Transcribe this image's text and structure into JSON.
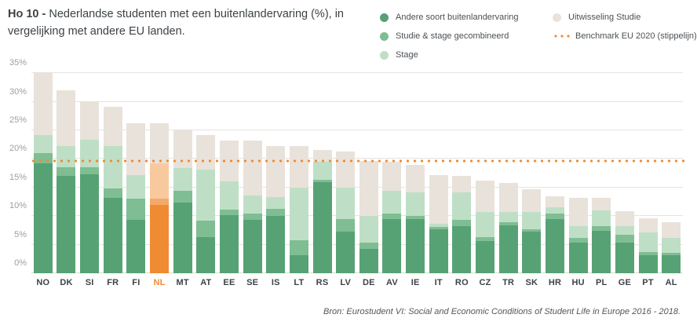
{
  "title": {
    "bold": "Ho 10 - ",
    "rest": "Nederlandse studenten met een buitenlandervaring (%), in vergelijking met andere EU landen."
  },
  "source": "Bron: Eurostudent VI: Social and Economic Conditions of Student Life in Europe 2016 - 2018.",
  "legend": {
    "columns": [
      [
        {
          "label": "Andere soort buitenlandervaring",
          "swatch": "dot",
          "color": "#57a274"
        },
        {
          "label": "Studie & stage gecombineerd",
          "swatch": "dot",
          "color": "#7fbd92"
        },
        {
          "label": "Stage",
          "swatch": "dot",
          "color": "#bedfc6"
        }
      ],
      [
        {
          "label": "Uitwisseling Studie",
          "swatch": "dot",
          "color": "#e9e2da"
        },
        {
          "label": "Benchmark EU 2020 (stippelijn)",
          "swatch": "dotted-line",
          "color": "#f08c33"
        }
      ]
    ]
  },
  "chart_data": {
    "type": "bar",
    "stacked": true,
    "categories": [
      "NO",
      "DK",
      "SI",
      "FR",
      "FI",
      "NL",
      "MT",
      "AT",
      "EE",
      "SE",
      "IS",
      "LT",
      "RS",
      "LV",
      "DE",
      "AV",
      "IE",
      "IT",
      "RO",
      "CZ",
      "TR",
      "SK",
      "HR",
      "HU",
      "PL",
      "GE",
      "PT",
      "AL"
    ],
    "series": [
      {
        "name": "Andere soort buitenlandervaring",
        "values": [
          19.3,
          17.0,
          17.3,
          13.2,
          9.3,
          12.0,
          12.3,
          6.3,
          10.2,
          9.3,
          10.1,
          3.2,
          15.9,
          7.3,
          4.3,
          9.5,
          9.5,
          7.7,
          8.2,
          5.6,
          8.4,
          7.3,
          9.5,
          5.3,
          7.4,
          5.4,
          3.1,
          3.2
        ]
      },
      {
        "name": "Studie & stage gecombineerd",
        "values": [
          1.7,
          1.5,
          1.3,
          1.7,
          3.8,
          1.1,
          2.1,
          2.9,
          0.9,
          1.1,
          1.2,
          2.6,
          0.5,
          2.2,
          1.1,
          1.0,
          0.6,
          0.4,
          1.1,
          0.7,
          0.5,
          0.4,
          1.0,
          0.9,
          0.8,
          1.3,
          0.6,
          0.4
        ]
      },
      {
        "name": "Stage",
        "values": [
          3.2,
          3.8,
          4.7,
          7.3,
          4.1,
          6.1,
          4.0,
          9.0,
          5.0,
          3.2,
          2.0,
          9.2,
          3.1,
          5.5,
          4.7,
          3.9,
          4.0,
          0.5,
          4.9,
          4.4,
          1.8,
          3.0,
          1.1,
          2.1,
          2.8,
          1.5,
          3.5,
          2.6
        ]
      },
      {
        "name": "Uitwisseling Studie",
        "values": [
          10.8,
          9.7,
          6.7,
          7.0,
          9.1,
          7.1,
          6.8,
          6.0,
          7.1,
          9.6,
          9.0,
          7.3,
          2.1,
          6.3,
          9.6,
          5.1,
          4.9,
          8.6,
          2.9,
          5.5,
          5.1,
          4.0,
          1.9,
          4.9,
          2.2,
          2.7,
          2.4,
          2.7
        ]
      }
    ],
    "totals": [
      35.0,
      32.0,
      30.0,
      29.2,
      26.3,
      26.3,
      25.2,
      24.2,
      23.2,
      23.2,
      22.3,
      22.3,
      21.6,
      21.3,
      19.7,
      19.5,
      19.0,
      17.2,
      17.1,
      16.2,
      15.8,
      14.7,
      13.5,
      13.2,
      13.2,
      10.9,
      9.6,
      8.9
    ],
    "benchmark": {
      "label": "Benchmark EU 2020 (stippelijn)",
      "value": 20,
      "color": "#f08c33"
    },
    "highlight": {
      "category": "NL",
      "segment_colors": [
        "#ef8c33",
        "#f4a96a",
        "#f9c99e",
        "#e9e2da"
      ],
      "label_color": "#ef8c33"
    },
    "segment_colors": [
      "#57a274",
      "#7fbd92",
      "#bedfc6",
      "#e9e2da"
    ],
    "y_ticks": [
      "0%",
      "5%",
      "10%",
      "15%",
      "20%",
      "25%",
      "30%",
      "35%"
    ],
    "ylim": [
      0,
      36
    ],
    "xlabel": "",
    "ylabel": "",
    "grid": true,
    "legend_position": "top-right"
  }
}
